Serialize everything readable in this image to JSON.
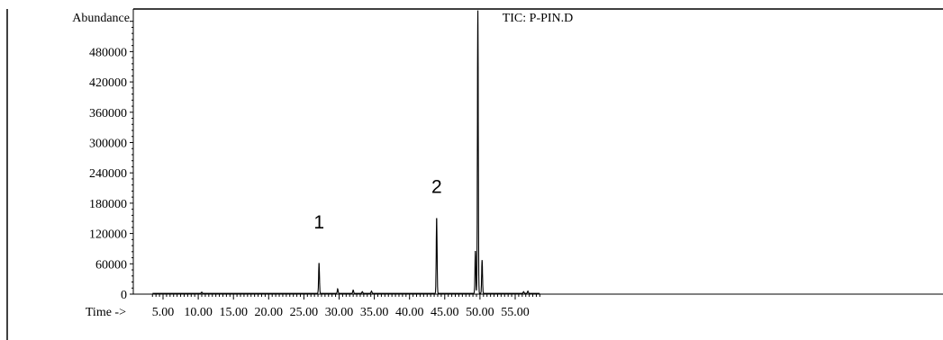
{
  "chart_data": {
    "type": "line",
    "title": "TIC: P-PIN.D",
    "ylabel": "Abundance",
    "xlabel": "Time ->",
    "xlim": [
      3.4,
      58.5
    ],
    "ylim": [
      0,
      550000
    ],
    "x_ticks": [
      "5.00",
      "10.00",
      "15.00",
      "20.00",
      "25.00",
      "30.00",
      "35.00",
      "40.00",
      "45.00",
      "50.00",
      "55.00"
    ],
    "y_ticks": [
      "0",
      "60000",
      "120000",
      "180000",
      "240000",
      "300000",
      "360000",
      "420000",
      "480000"
    ],
    "baseline": 1500,
    "peaks": [
      {
        "rt": 10.5,
        "height": 2500
      },
      {
        "rt": 27.15,
        "height": 60000
      },
      {
        "rt": 29.8,
        "height": 9000
      },
      {
        "rt": 32.0,
        "height": 6500
      },
      {
        "rt": 33.3,
        "height": 3500
      },
      {
        "rt": 34.6,
        "height": 4500
      },
      {
        "rt": 43.85,
        "height": 150000
      },
      {
        "rt": 49.35,
        "height": 84000
      },
      {
        "rt": 49.7,
        "height": 560000
      },
      {
        "rt": 50.3,
        "height": 66000
      },
      {
        "rt": 56.2,
        "height": 3500
      },
      {
        "rt": 56.8,
        "height": 4500
      }
    ],
    "annotations": [
      {
        "text": "1",
        "x": 27.15,
        "y": 130000
      },
      {
        "text": "2",
        "x": 43.85,
        "y": 200000
      }
    ]
  }
}
